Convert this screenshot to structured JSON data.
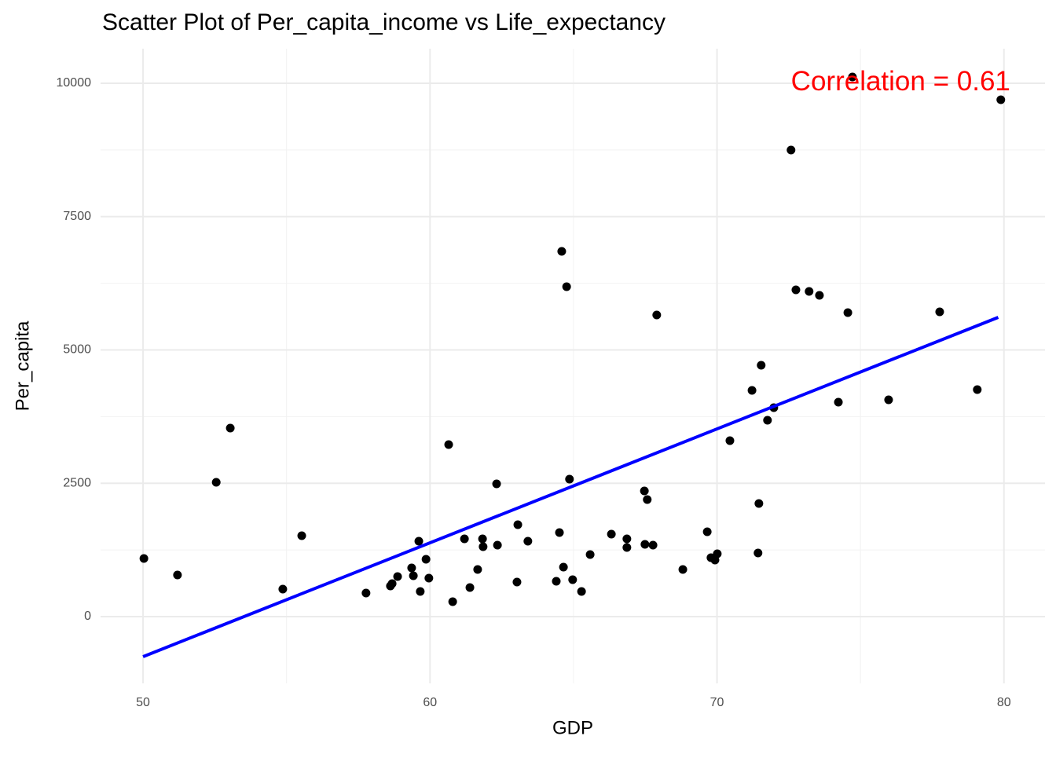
{
  "chart_data": {
    "type": "scatter",
    "title": "Scatter Plot of Per_capita_income vs Life_expectancy",
    "x_label": "GDP",
    "y_label": "Per_capita",
    "xlim": [
      48.52,
      81.43
    ],
    "ylim": [
      -1252,
      10648
    ],
    "xticks": [
      50,
      60,
      70,
      80
    ],
    "yticks": [
      0,
      2500,
      5000,
      7500,
      10000
    ],
    "xminor": [
      55,
      65,
      75
    ],
    "yminor": [
      1250,
      3750,
      6250,
      8750
    ],
    "grid": true,
    "series": [
      {
        "color": "#000000",
        "x": [
          50.03,
          51.2,
          52.55,
          53.04,
          54.87,
          55.53,
          57.77,
          58.62,
          58.68,
          58.87,
          59.36,
          59.42,
          59.61,
          59.66,
          59.86,
          59.96,
          60.65,
          60.79,
          61.2,
          61.39,
          61.66,
          61.83,
          61.85,
          62.32,
          62.35,
          63.03,
          63.06,
          63.41,
          64.4,
          64.51,
          64.59,
          64.65,
          64.76,
          64.86,
          64.97,
          65.28,
          65.58,
          66.32,
          66.86,
          66.86,
          67.47,
          67.49,
          67.57,
          67.77,
          67.9,
          68.81,
          69.66,
          69.79,
          69.93,
          70.01,
          70.45,
          71.22,
          71.43,
          71.46,
          71.54,
          71.76,
          71.98,
          72.58,
          72.75,
          73.21,
          73.57,
          74.23,
          74.56,
          74.72,
          75.98,
          77.76,
          79.07,
          79.89
        ],
        "values": [
          1090,
          781,
          2518,
          3535,
          515,
          1517,
          442,
          574,
          619,
          751,
          913,
          766,
          1414,
          471,
          1075,
          722,
          3225,
          280,
          1458,
          545,
          884,
          1458,
          1311,
          2489,
          1340,
          648,
          1723,
          1414,
          663,
          1576,
          6848,
          928,
          6186,
          2577,
          692,
          471,
          1163,
          1546,
          1458,
          1296,
          2356,
          1355,
          2194,
          1340,
          5655,
          884,
          1591,
          1105,
          1060,
          1178,
          3299,
          4241,
          1193,
          2121,
          4713,
          3682,
          3918,
          8748,
          6127,
          6097,
          6024,
          4021,
          5700,
          10118,
          4065,
          5714,
          4256,
          9691
        ]
      }
    ],
    "trend": {
      "color": "#0000ff",
      "x": [
        50,
        79.8
      ],
      "values": [
        -751,
        5611
      ]
    },
    "annotation": {
      "text": "Correlation = 0.61",
      "x": 76.4,
      "y": 10000,
      "color": "#ff0000"
    }
  }
}
